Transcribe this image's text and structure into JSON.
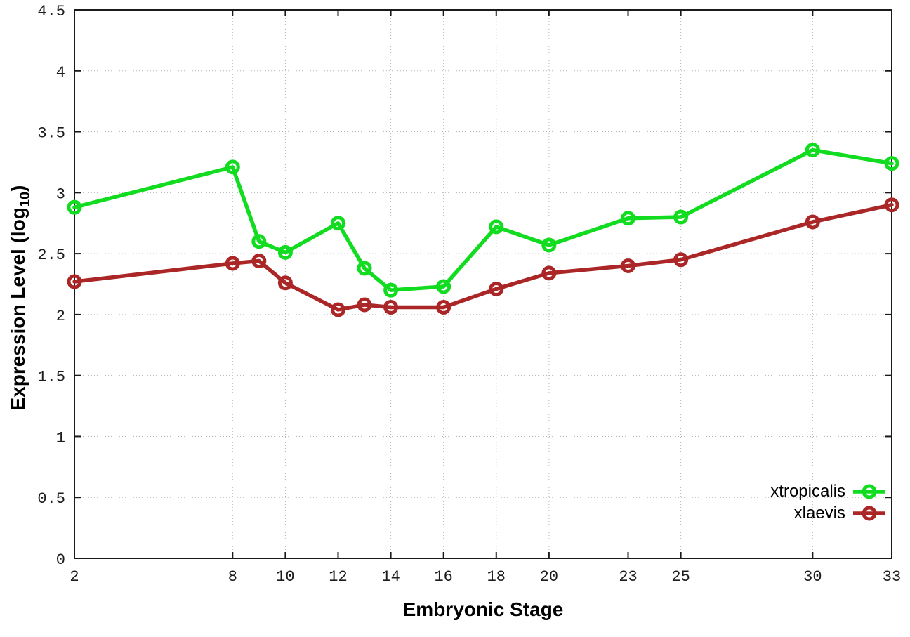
{
  "chart_data": {
    "type": "line",
    "title": "",
    "xlabel": "Embryonic Stage",
    "ylabel": "Expression Level (log10)",
    "ylabel_prefix": "Expression Level (log",
    "ylabel_sub": "10",
    "ylabel_suffix": ")",
    "xlim": [
      2,
      33
    ],
    "ylim": [
      0,
      4.5
    ],
    "x_ticks": [
      2,
      8,
      10,
      12,
      14,
      16,
      18,
      20,
      23,
      25,
      30,
      33
    ],
    "x_tick_labels": [
      "2",
      "8",
      "10",
      "12",
      "14",
      "16",
      "18",
      "20",
      "23",
      "25",
      "30",
      "33"
    ],
    "y_ticks": [
      0,
      0.5,
      1,
      1.5,
      2,
      2.5,
      3,
      3.5,
      4,
      4.5
    ],
    "y_tick_labels": [
      "0",
      "0.5",
      "1",
      "1.5",
      "2",
      "2.5",
      "3",
      "3.5",
      "4",
      "4.5"
    ],
    "grid": true,
    "legend_position": "bottom-right",
    "marker": "open-circle",
    "x": [
      2,
      8,
      9,
      10,
      12,
      13,
      14,
      16,
      18,
      20,
      23,
      25,
      30,
      33
    ],
    "series": [
      {
        "name": "xtropicalis",
        "color": "#11dc20",
        "values": [
          2.88,
          3.21,
          2.6,
          2.51,
          2.75,
          2.38,
          2.2,
          2.23,
          2.72,
          2.57,
          2.79,
          2.8,
          3.35,
          3.24
        ]
      },
      {
        "name": "xlaevis",
        "color": "#ab2626",
        "values": [
          2.27,
          2.42,
          2.44,
          2.26,
          2.04,
          2.08,
          2.06,
          2.06,
          2.21,
          2.34,
          2.4,
          2.45,
          2.76,
          2.9
        ]
      }
    ]
  }
}
